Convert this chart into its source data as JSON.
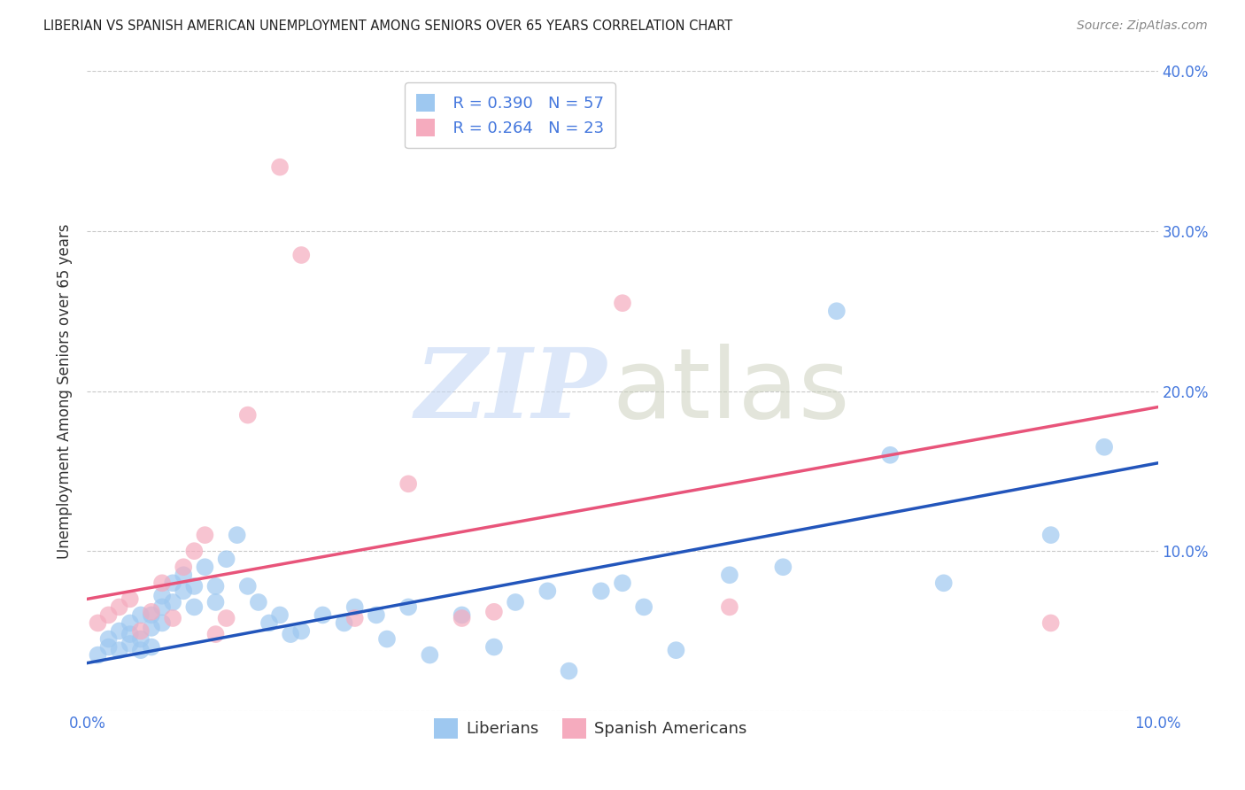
{
  "title": "LIBERIAN VS SPANISH AMERICAN UNEMPLOYMENT AMONG SENIORS OVER 65 YEARS CORRELATION CHART",
  "source": "Source: ZipAtlas.com",
  "ylabel": "Unemployment Among Seniors over 65 years",
  "xlim": [
    0.0,
    0.1
  ],
  "ylim": [
    0.0,
    0.4
  ],
  "xticks": [
    0.0,
    0.02,
    0.04,
    0.06,
    0.08,
    0.1
  ],
  "yticks": [
    0.0,
    0.1,
    0.2,
    0.3,
    0.4
  ],
  "xticklabels": [
    "0.0%",
    "",
    "",
    "",
    "",
    "10.0%"
  ],
  "yticklabels_left": [
    "",
    "",
    "",
    "",
    ""
  ],
  "yticklabels_right": [
    "",
    "10.0%",
    "20.0%",
    "30.0%",
    "40.0%"
  ],
  "liberian_R": 0.39,
  "liberian_N": 57,
  "spanish_R": 0.264,
  "spanish_N": 23,
  "liberian_color": "#9EC8F0",
  "spanish_color": "#F5ABBE",
  "liberian_line_color": "#2255BB",
  "spanish_line_color": "#E8547A",
  "title_color": "#222222",
  "axis_color": "#4477DD",
  "background_color": "#FFFFFF",
  "grid_color": "#BBBBBB",
  "liberian_x": [
    0.001,
    0.002,
    0.002,
    0.003,
    0.003,
    0.004,
    0.004,
    0.004,
    0.005,
    0.005,
    0.005,
    0.006,
    0.006,
    0.006,
    0.007,
    0.007,
    0.007,
    0.008,
    0.008,
    0.009,
    0.009,
    0.01,
    0.01,
    0.011,
    0.012,
    0.012,
    0.013,
    0.014,
    0.015,
    0.016,
    0.017,
    0.018,
    0.019,
    0.02,
    0.022,
    0.024,
    0.025,
    0.027,
    0.028,
    0.03,
    0.032,
    0.035,
    0.038,
    0.04,
    0.043,
    0.045,
    0.048,
    0.05,
    0.052,
    0.055,
    0.06,
    0.065,
    0.07,
    0.075,
    0.08,
    0.09,
    0.095
  ],
  "liberian_y": [
    0.035,
    0.04,
    0.045,
    0.038,
    0.05,
    0.042,
    0.048,
    0.055,
    0.038,
    0.045,
    0.06,
    0.04,
    0.052,
    0.06,
    0.055,
    0.065,
    0.072,
    0.068,
    0.08,
    0.075,
    0.085,
    0.065,
    0.078,
    0.09,
    0.068,
    0.078,
    0.095,
    0.11,
    0.078,
    0.068,
    0.055,
    0.06,
    0.048,
    0.05,
    0.06,
    0.055,
    0.065,
    0.06,
    0.045,
    0.065,
    0.035,
    0.06,
    0.04,
    0.068,
    0.075,
    0.025,
    0.075,
    0.08,
    0.065,
    0.038,
    0.085,
    0.09,
    0.25,
    0.16,
    0.08,
    0.11,
    0.165
  ],
  "spanish_x": [
    0.001,
    0.002,
    0.003,
    0.004,
    0.005,
    0.006,
    0.007,
    0.008,
    0.009,
    0.01,
    0.011,
    0.012,
    0.013,
    0.015,
    0.018,
    0.02,
    0.025,
    0.03,
    0.035,
    0.038,
    0.05,
    0.06,
    0.09
  ],
  "spanish_y": [
    0.055,
    0.06,
    0.065,
    0.07,
    0.05,
    0.062,
    0.08,
    0.058,
    0.09,
    0.1,
    0.11,
    0.048,
    0.058,
    0.185,
    0.34,
    0.285,
    0.058,
    0.142,
    0.058,
    0.062,
    0.255,
    0.065,
    0.055
  ]
}
